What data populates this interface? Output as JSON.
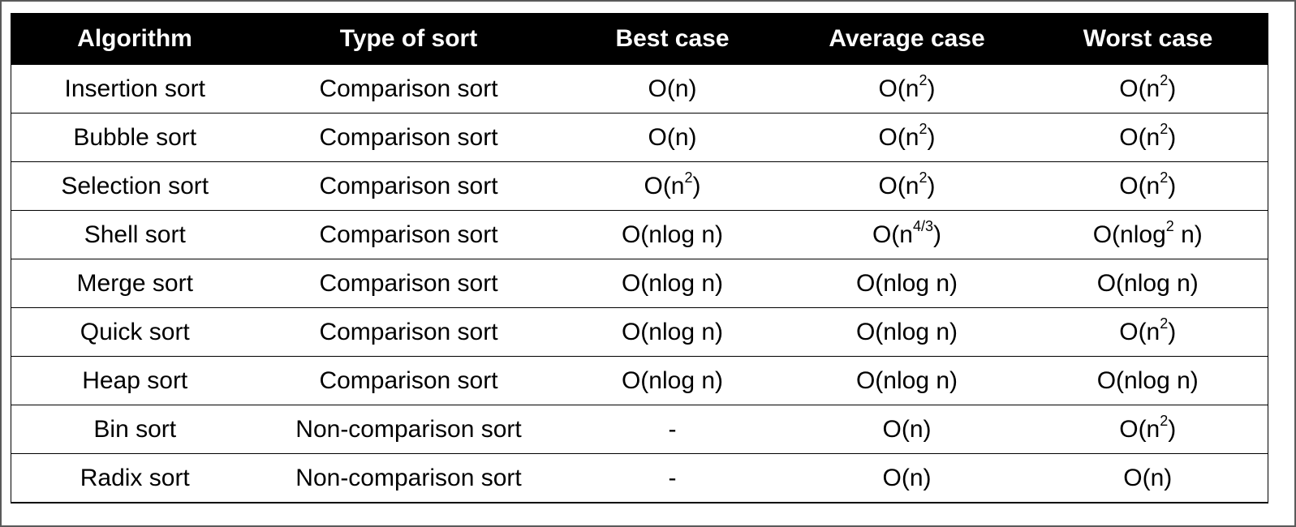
{
  "table": {
    "headers": [
      "Algorithm",
      "Type of sort",
      "Best case",
      "Average case",
      "Worst case"
    ],
    "rows": [
      [
        {
          "text": "Insertion sort"
        },
        {
          "text": "Comparison sort"
        },
        {
          "text": "O(n)"
        },
        {
          "pre": "O(n",
          "sup": "2",
          "post": ")"
        },
        {
          "pre": "O(n",
          "sup": "2",
          "post": ")"
        }
      ],
      [
        {
          "text": "Bubble sort"
        },
        {
          "text": "Comparison sort"
        },
        {
          "text": "O(n)"
        },
        {
          "pre": "O(n",
          "sup": "2",
          "post": ")"
        },
        {
          "pre": "O(n",
          "sup": "2",
          "post": ")"
        }
      ],
      [
        {
          "text": "Selection sort"
        },
        {
          "text": "Comparison sort"
        },
        {
          "pre": "O(n",
          "sup": "2",
          "post": ")"
        },
        {
          "pre": "O(n",
          "sup": "2",
          "post": ")"
        },
        {
          "pre": "O(n",
          "sup": "2",
          "post": ")"
        }
      ],
      [
        {
          "text": "Shell sort"
        },
        {
          "text": "Comparison sort"
        },
        {
          "text": "O(nlog n)"
        },
        {
          "pre": "O(n",
          "sup": "4/3",
          "post": ")"
        },
        {
          "pre": "O(nlog",
          "sup": "2",
          "post": " n)"
        }
      ],
      [
        {
          "text": "Merge sort"
        },
        {
          "text": "Comparison sort"
        },
        {
          "text": "O(nlog n)"
        },
        {
          "text": "O(nlog n)"
        },
        {
          "text": "O(nlog n)"
        }
      ],
      [
        {
          "text": "Quick sort"
        },
        {
          "text": "Comparison sort"
        },
        {
          "text": "O(nlog n)"
        },
        {
          "text": "O(nlog n)"
        },
        {
          "pre": "O(n",
          "sup": "2",
          "post": ")"
        }
      ],
      [
        {
          "text": "Heap sort"
        },
        {
          "text": "Comparison sort"
        },
        {
          "text": "O(nlog n)"
        },
        {
          "text": "O(nlog n)"
        },
        {
          "text": "O(nlog n)"
        }
      ],
      [
        {
          "text": "Bin sort"
        },
        {
          "text": "Non-comparison sort"
        },
        {
          "text": "-"
        },
        {
          "text": "O(n)"
        },
        {
          "pre": "O(n",
          "sup": "2",
          "post": ")"
        }
      ],
      [
        {
          "text": "Radix sort"
        },
        {
          "text": "Non-comparison sort"
        },
        {
          "text": "-"
        },
        {
          "text": "O(n)"
        },
        {
          "text": "O(n)"
        }
      ]
    ]
  }
}
